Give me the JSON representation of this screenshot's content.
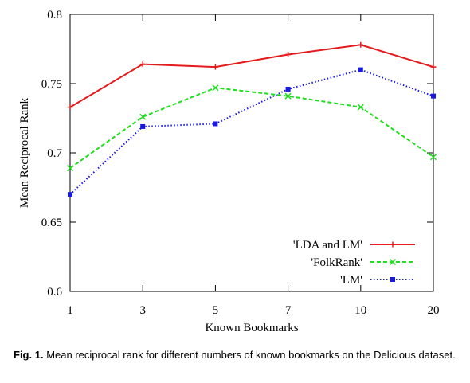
{
  "chart_data": {
    "type": "line",
    "xlabel": "Known Bookmarks",
    "ylabel": "Mean Reciprocal Rank",
    "categories": [
      "1",
      "3",
      "5",
      "7",
      "10",
      "20"
    ],
    "ylim": [
      0.6,
      0.8
    ],
    "yticks": [
      "0.6",
      "0.65",
      "0.7",
      "0.75",
      "0.8"
    ],
    "yticks_values": [
      0.6,
      0.65,
      0.7,
      0.75,
      0.8
    ],
    "grid": false,
    "legend_position": "bottom-right",
    "series": [
      {
        "name": "'LDA and LM'",
        "color": "#e41a1c",
        "dash": "solid",
        "marker": "plus",
        "values": [
          0.733,
          0.764,
          0.762,
          0.771,
          0.778,
          0.762
        ]
      },
      {
        "name": "'FolkRank'",
        "color": "#22dd22",
        "dash": "dashed",
        "marker": "cross",
        "values": [
          0.689,
          0.726,
          0.747,
          0.741,
          0.733,
          0.697
        ]
      },
      {
        "name": "'LM'",
        "color": "#1a1adf",
        "dash": "dotted",
        "marker": "square",
        "values": [
          0.67,
          0.719,
          0.721,
          0.746,
          0.76,
          0.741
        ]
      }
    ]
  },
  "caption": {
    "label": "Fig. 1.",
    "text": "Mean reciprocal rank for different numbers of known bookmarks on the Delicious dataset."
  }
}
